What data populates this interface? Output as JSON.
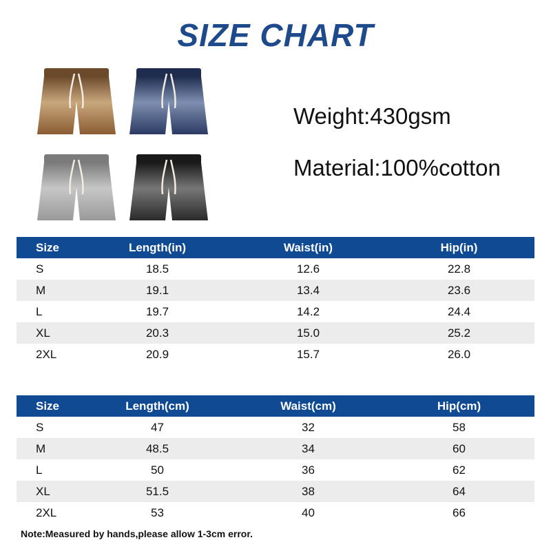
{
  "title": "SIZE CHART",
  "specs": {
    "weight": "Weight:430gsm",
    "material": "Material:100%cotton"
  },
  "products": [
    {
      "name": "brown-shorts-image",
      "color_top": "#6b4a2b",
      "color_mid": "#c9a77d",
      "color_bot": "#8a5c33"
    },
    {
      "name": "navy-shorts-image",
      "color_top": "#1f2c4e",
      "color_mid": "#7e8fb0",
      "color_bot": "#2b3a63"
    },
    {
      "name": "grey-shorts-image",
      "color_top": "#7b7b7b",
      "color_mid": "#c6c6c6",
      "color_bot": "#9a9a9a"
    },
    {
      "name": "black-shorts-image",
      "color_top": "#1a1a1a",
      "color_mid": "#777777",
      "color_bot": "#2a2a2a"
    }
  ],
  "table_in": {
    "headers": [
      "Size",
      "Length(in)",
      "Waist(in)",
      "Hip(in)"
    ],
    "rows": [
      [
        "S",
        "18.5",
        "12.6",
        "22.8"
      ],
      [
        "M",
        "19.1",
        "13.4",
        "23.6"
      ],
      [
        "L",
        "19.7",
        "14.2",
        "24.4"
      ],
      [
        "XL",
        "20.3",
        "15.0",
        "25.2"
      ],
      [
        "2XL",
        "20.9",
        "15.7",
        "26.0"
      ]
    ]
  },
  "table_cm": {
    "headers": [
      "Size",
      "Length(cm)",
      "Waist(cm)",
      "Hip(cm)"
    ],
    "rows": [
      [
        "S",
        "47",
        "32",
        "58"
      ],
      [
        "M",
        "48.5",
        "34",
        "60"
      ],
      [
        "L",
        "50",
        "36",
        "62"
      ],
      [
        "XL",
        "51.5",
        "38",
        "64"
      ],
      [
        "2XL",
        "53",
        "40",
        "66"
      ]
    ]
  },
  "note": "Note:Measured by hands,please allow 1-3cm error.",
  "colors": {
    "title": "#1e4a8c",
    "header_bg": "#0f4a93",
    "row_shade": "#ececec"
  }
}
